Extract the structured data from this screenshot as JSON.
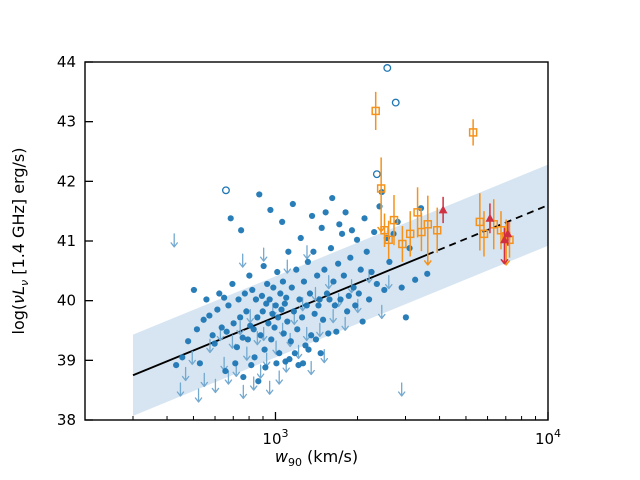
{
  "chart_data": {
    "type": "scatter",
    "title": "",
    "xlabel": "w90 (km/s)",
    "ylabel": "log(vL_v [1.4 GHz] erg/s)",
    "xlabel_parts": {
      "main": "w",
      "sub": "90",
      "rest": " (km/s)"
    },
    "ylabel_parts": {
      "pre": "log(",
      "italic": "νL",
      "sub": "ν",
      "rest": " [1.4 GHz] erg/s)"
    },
    "xscale": "log",
    "xlim": [
      200,
      10000
    ],
    "ylim": [
      38,
      44
    ],
    "yticks": [
      38,
      39,
      40,
      41,
      42,
      43,
      44
    ],
    "xticks_major": [
      1000,
      10000
    ],
    "xtick_major_labels": [
      [
        "10",
        "3"
      ],
      [
        "10",
        "4"
      ]
    ],
    "xticks_minor": [
      300,
      400,
      500,
      600,
      700,
      800,
      900,
      2000,
      3000,
      4000,
      5000,
      6000,
      7000,
      8000,
      9000
    ],
    "grid": false,
    "legend": "none",
    "colors": {
      "detection": "#1f77b4",
      "upper_limit": "#74a9d0",
      "open_circle": "#1f77b4",
      "orange": "#f5921b",
      "red": "#d03040",
      "band": "#cfe0ee",
      "fit_line": "#000000"
    },
    "fit": {
      "x0": 300,
      "y0": 38.75,
      "x1": 10000,
      "y1": 41.6,
      "solid_until": 3600,
      "band_halfwidth": 0.68
    },
    "series": {
      "detections": {
        "label": "blue filled circles (detections)",
        "points": [
          [
            432,
            38.92
          ],
          [
            455,
            39.05
          ],
          [
            478,
            39.32
          ],
          [
            502,
            40.18
          ],
          [
            515,
            39.52
          ],
          [
            528,
            38.95
          ],
          [
            545,
            39.68
          ],
          [
            558,
            40.02
          ],
          [
            572,
            39.75
          ],
          [
            588,
            39.42
          ],
          [
            598,
            39.28
          ],
          [
            612,
            39.85
          ],
          [
            622,
            40.12
          ],
          [
            635,
            39.55
          ],
          [
            648,
            40.05
          ],
          [
            655,
            38.82
          ],
          [
            662,
            39.48
          ],
          [
            672,
            39.92
          ],
          [
            685,
            41.38
          ],
          [
            695,
            40.28
          ],
          [
            702,
            39.62
          ],
          [
            712,
            38.95
          ],
          [
            722,
            39.22
          ],
          [
            732,
            40.02
          ],
          [
            742,
            39.72
          ],
          [
            748,
            41.18
          ],
          [
            758,
            39.38
          ],
          [
            762,
            38.72
          ],
          [
            772,
            40.12
          ],
          [
            782,
            39.82
          ],
          [
            792,
            39.35
          ],
          [
            802,
            40.42
          ],
          [
            808,
            39.58
          ],
          [
            815,
            38.92
          ],
          [
            822,
            40.18
          ],
          [
            832,
            39.52
          ],
          [
            838,
            39.05
          ],
          [
            848,
            40.02
          ],
          [
            858,
            39.72
          ],
          [
            865,
            38.65
          ],
          [
            872,
            41.78
          ],
          [
            882,
            39.42
          ],
          [
            892,
            40.08
          ],
          [
            898,
            39.82
          ],
          [
            905,
            40.58
          ],
          [
            912,
            39.18
          ],
          [
            918,
            38.88
          ],
          [
            925,
            39.95
          ],
          [
            932,
            40.28
          ],
          [
            942,
            39.62
          ],
          [
            952,
            40.02
          ],
          [
            958,
            41.52
          ],
          [
            965,
            39.35
          ],
          [
            975,
            39.78
          ],
          [
            982,
            40.22
          ],
          [
            992,
            39.55
          ],
          [
            1002,
            39.92
          ],
          [
            1008,
            38.95
          ],
          [
            1015,
            40.48
          ],
          [
            1022,
            39.72
          ],
          [
            1032,
            39.12
          ],
          [
            1042,
            40.12
          ],
          [
            1052,
            39.85
          ],
          [
            1058,
            41.32
          ],
          [
            1065,
            40.32
          ],
          [
            1072,
            39.45
          ],
          [
            1082,
            39.95
          ],
          [
            1088,
            38.98
          ],
          [
            1095,
            40.05
          ],
          [
            1105,
            39.65
          ],
          [
            1115,
            40.82
          ],
          [
            1125,
            39.02
          ],
          [
            1138,
            39.32
          ],
          [
            1148,
            40.22
          ],
          [
            1158,
            41.62
          ],
          [
            1168,
            39.82
          ],
          [
            1178,
            39.12
          ],
          [
            1192,
            40.52
          ],
          [
            1202,
            39.52
          ],
          [
            1215,
            38.92
          ],
          [
            1225,
            40.02
          ],
          [
            1238,
            41.05
          ],
          [
            1252,
            39.72
          ],
          [
            1262,
            38.95
          ],
          [
            1272,
            40.32
          ],
          [
            1288,
            39.25
          ],
          [
            1302,
            39.92
          ],
          [
            1315,
            40.65
          ],
          [
            1322,
            39.18
          ],
          [
            1338,
            40.12
          ],
          [
            1352,
            39.42
          ],
          [
            1362,
            41.42
          ],
          [
            1378,
            40.82
          ],
          [
            1392,
            39.78
          ],
          [
            1408,
            39.35
          ],
          [
            1422,
            40.42
          ],
          [
            1438,
            39.92
          ],
          [
            1452,
            40.02
          ],
          [
            1465,
            39.12
          ],
          [
            1478,
            41.22
          ],
          [
            1495,
            39.68
          ],
          [
            1512,
            40.52
          ],
          [
            1528,
            41.48
          ],
          [
            1545,
            40.12
          ],
          [
            1562,
            39.45
          ],
          [
            1578,
            40.02
          ],
          [
            1598,
            40.88
          ],
          [
            1615,
            41.72
          ],
          [
            1632,
            40.32
          ],
          [
            1652,
            39.92
          ],
          [
            1672,
            39.48
          ],
          [
            1698,
            40.62
          ],
          [
            1715,
            41.28
          ],
          [
            1732,
            40.02
          ],
          [
            1755,
            41.12
          ],
          [
            1782,
            40.42
          ],
          [
            1808,
            41.48
          ],
          [
            1832,
            39.82
          ],
          [
            1858,
            40.08
          ],
          [
            1882,
            40.72
          ],
          [
            1908,
            41.18
          ],
          [
            1935,
            40.22
          ],
          [
            1962,
            39.92
          ],
          [
            1992,
            41.02
          ],
          [
            2022,
            40.12
          ],
          [
            2055,
            40.52
          ],
          [
            2088,
            39.65
          ],
          [
            2122,
            41.38
          ],
          [
            2162,
            40.82
          ],
          [
            2205,
            40.02
          ],
          [
            2252,
            40.48
          ],
          [
            2302,
            41.15
          ],
          [
            2355,
            40.28
          ],
          [
            2408,
            41.58
          ],
          [
            2455,
            41.82
          ],
          [
            2508,
            40.18
          ],
          [
            2562,
            41.05
          ],
          [
            2618,
            40.65
          ],
          [
            2712,
            41.12
          ],
          [
            2808,
            41.32
          ],
          [
            2905,
            40.22
          ],
          [
            3010,
            39.72
          ],
          [
            3105,
            40.88
          ],
          [
            3255,
            40.35
          ],
          [
            3420,
            41.55
          ],
          [
            3605,
            40.45
          ]
        ]
      },
      "upper_limits": {
        "label": "light blue downward arrows (upper limits)",
        "points": [
          [
            425,
            41.12
          ],
          [
            448,
            38.62
          ],
          [
            468,
            38.88
          ],
          [
            495,
            39.15
          ],
          [
            522,
            38.52
          ],
          [
            548,
            38.78
          ],
          [
            575,
            39.35
          ],
          [
            602,
            38.68
          ],
          [
            628,
            39.55
          ],
          [
            648,
            39.05
          ],
          [
            672,
            38.82
          ],
          [
            695,
            39.42
          ],
          [
            718,
            38.95
          ],
          [
            742,
            39.65
          ],
          [
            762,
            38.58
          ],
          [
            785,
            39.22
          ],
          [
            808,
            39.85
          ],
          [
            832,
            38.72
          ],
          [
            858,
            39.48
          ],
          [
            882,
            38.92
          ],
          [
            905,
            39.55
          ],
          [
            928,
            39.12
          ],
          [
            952,
            38.65
          ],
          [
            978,
            39.95
          ],
          [
            1005,
            39.32
          ],
          [
            1032,
            38.82
          ],
          [
            1062,
            39.62
          ],
          [
            1095,
            39.02
          ],
          [
            1132,
            39.45
          ],
          [
            1172,
            39.82
          ],
          [
            1215,
            39.25
          ],
          [
            1258,
            40.05
          ],
          [
            1302,
            39.55
          ],
          [
            1352,
            38.98
          ],
          [
            1402,
            40.22
          ],
          [
            1455,
            39.62
          ],
          [
            1510,
            39.18
          ],
          [
            1568,
            40.42
          ],
          [
            1628,
            39.85
          ],
          [
            1705,
            40.12
          ],
          [
            1802,
            39.72
          ],
          [
            1902,
            40.35
          ],
          [
            2005,
            40.02
          ],
          [
            2205,
            40.52
          ],
          [
            2455,
            39.92
          ],
          [
            2905,
            38.62
          ],
          [
            905,
            40.88
          ],
          [
            758,
            40.78
          ],
          [
            1105,
            40.68
          ],
          [
            1305,
            40.92
          ],
          [
            2605,
            40.42
          ]
        ]
      },
      "open_circles": {
        "label": "blue open circles",
        "points": [
          [
            658,
            41.85
          ],
          [
            2355,
            42.12
          ],
          [
            2572,
            43.9
          ],
          [
            2762,
            43.32
          ]
        ]
      },
      "orange_squares": {
        "label": "orange open squares with error bars (limit flag = down arrow)",
        "points": [
          [
            2332,
            43.18,
            0.32,
            0
          ],
          [
            2442,
            41.88,
            0.52,
            1
          ],
          [
            2512,
            41.18,
            0.28,
            0
          ],
          [
            2602,
            41.02,
            0.32,
            0
          ],
          [
            2722,
            41.35,
            0.42,
            0
          ],
          [
            2922,
            40.95,
            0.3,
            0
          ],
          [
            3122,
            41.12,
            0.38,
            0
          ],
          [
            3322,
            41.48,
            0.42,
            0
          ],
          [
            3432,
            41.15,
            0.32,
            0
          ],
          [
            3622,
            41.28,
            0.48,
            1
          ],
          [
            3922,
            41.18,
            0.38,
            0
          ],
          [
            5312,
            42.82,
            0.22,
            0
          ],
          [
            5622,
            41.32,
            0.48,
            0
          ],
          [
            5822,
            41.12,
            0.38,
            0
          ],
          [
            6322,
            41.28,
            0.42,
            0
          ],
          [
            6722,
            41.18,
            0.32,
            0
          ],
          [
            7022,
            41.08,
            0.28,
            1
          ],
          [
            7222,
            41.02,
            0.3,
            0
          ]
        ]
      },
      "red_triangles": {
        "label": "red filled triangles with error bars (limit flag = down arrow)",
        "points": [
          [
            4122,
            41.52,
            0.22,
            0
          ],
          [
            6122,
            41.38,
            0.25,
            0
          ],
          [
            6922,
            41.02,
            0.2,
            1
          ],
          [
            7122,
            41.12,
            0.2,
            0
          ]
        ]
      }
    }
  }
}
